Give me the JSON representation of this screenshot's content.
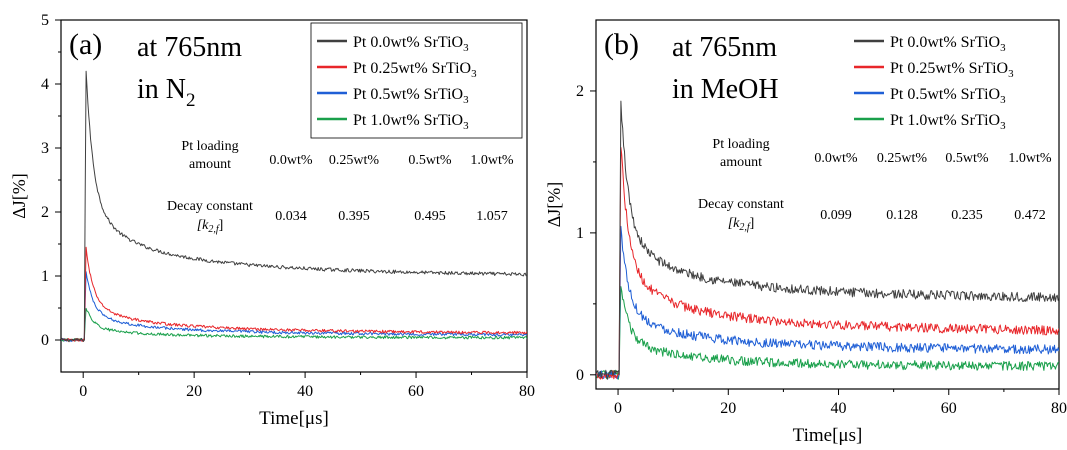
{
  "chart_data": [
    {
      "type": "line",
      "panel_label": "(a)",
      "annotation_lines": [
        "at 765nm",
        "in N",
        "2"
      ],
      "xlabel": "Time[μs]",
      "ylabel": "ΔJ[%]",
      "xlim": [
        -4,
        80
      ],
      "ylim": [
        -0.5,
        5
      ],
      "xticks": [
        0,
        20,
        40,
        60,
        80
      ],
      "yticks": [
        0,
        1,
        2,
        3,
        4,
        5
      ],
      "legend_position": "top-right",
      "series": [
        {
          "name": "Pt 0.0wt% SrTiO₃",
          "color": "#404040",
          "peak": 4.25,
          "tail": 0.92,
          "noise": 0.025
        },
        {
          "name": "Pt 0.25wt% SrTiO₃",
          "color": "#e8262a",
          "peak": 1.45,
          "tail": 0.07,
          "noise": 0.02
        },
        {
          "name": "Pt 0.5wt% SrTiO₃",
          "color": "#1f5fd6",
          "peak": 1.08,
          "tail": 0.05,
          "noise": 0.02
        },
        {
          "name": "Pt 1.0wt% SrTiO₃",
          "color": "#1aa04b",
          "peak": 0.52,
          "tail": 0.02,
          "noise": 0.02
        }
      ],
      "table": {
        "row1_label": [
          "Pt loading",
          "amount"
        ],
        "row2_label": [
          "Decay constant",
          "[k",
          "2,f",
          "]"
        ],
        "loadings": [
          "0.0wt%",
          "0.25wt%",
          "0.5wt%",
          "1.0wt%"
        ],
        "decay_constants": [
          "0.034",
          "0.395",
          "0.495",
          "1.057"
        ]
      }
    },
    {
      "type": "line",
      "panel_label": "(b)",
      "annotation_lines": [
        "at 765nm",
        "in MeOH"
      ],
      "xlabel": "Time[μs]",
      "ylabel": "ΔJ[%]",
      "xlim": [
        -4,
        80
      ],
      "ylim": [
        -0.1,
        2.5
      ],
      "xticks": [
        0,
        20,
        40,
        60,
        80
      ],
      "yticks": [
        0,
        1,
        2
      ],
      "legend_position": "top-right",
      "series": [
        {
          "name": "Pt 0.0wt% SrTiO₃",
          "color": "#404040",
          "peak": 1.95,
          "tail": 0.5,
          "noise": 0.03
        },
        {
          "name": "Pt 0.25wt% SrTiO₃",
          "color": "#e8262a",
          "peak": 1.65,
          "tail": 0.27,
          "noise": 0.03
        },
        {
          "name": "Pt 0.5wt% SrTiO₃",
          "color": "#1f5fd6",
          "peak": 1.05,
          "tail": 0.15,
          "noise": 0.03
        },
        {
          "name": "Pt 1.0wt% SrTiO₃",
          "color": "#1aa04b",
          "peak": 0.65,
          "tail": 0.04,
          "noise": 0.03
        }
      ],
      "table": {
        "row1_label": [
          "Pt loading",
          "amount"
        ],
        "row2_label": [
          "Decay constant",
          "[k",
          "2,f",
          "]"
        ],
        "loadings": [
          "0.0wt%",
          "0.25wt%",
          "0.5wt%",
          "1.0wt%"
        ],
        "decay_constants": [
          "0.099",
          "0.128",
          "0.235",
          "0.472"
        ]
      }
    }
  ]
}
